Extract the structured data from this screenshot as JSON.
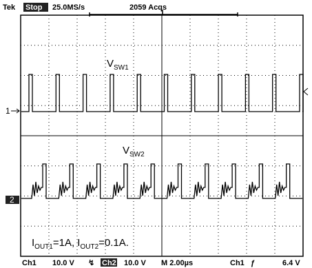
{
  "header": {
    "brand": "Tek",
    "state": "Stop",
    "sample_rate": "25.0MS/s",
    "acquisitions": "2059 Acqs"
  },
  "traces": [
    {
      "marker": "1",
      "label": {
        "main": "V",
        "sub": "SW1"
      }
    },
    {
      "marker": "2",
      "label": {
        "main": "V",
        "sub": "SW2"
      }
    }
  ],
  "annotation": {
    "parts": [
      "I",
      "OUT1",
      "=1A, ",
      "I",
      "OUT2",
      "=0.1A."
    ]
  },
  "footer": {
    "ch1": "Ch1",
    "ch1_scale": "10.0 V",
    "ch2": "Ch2",
    "ch2_scale": "10.0 V",
    "timebase": "M 2.00µs",
    "trigger_source": "Ch1",
    "trigger_level": "6.4 V"
  }
}
